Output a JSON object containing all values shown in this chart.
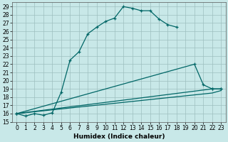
{
  "title": "",
  "xlabel": "Humidex (Indice chaleur)",
  "bg_color": "#c8e8e8",
  "line_color": "#006666",
  "grid_color": "#9dbfbf",
  "xlim": [
    -0.5,
    23.5
  ],
  "ylim": [
    15,
    29.5
  ],
  "xticks": [
    0,
    1,
    2,
    3,
    4,
    5,
    6,
    7,
    8,
    9,
    10,
    11,
    12,
    13,
    14,
    15,
    16,
    17,
    18,
    19,
    20,
    21,
    22,
    23
  ],
  "yticks": [
    15,
    16,
    17,
    18,
    19,
    20,
    21,
    22,
    23,
    24,
    25,
    26,
    27,
    28,
    29
  ],
  "curve1_x": [
    0,
    1,
    2,
    3,
    4,
    5,
    6,
    7,
    8,
    9,
    10,
    11,
    12,
    13,
    14,
    15,
    16,
    17,
    18
  ],
  "curve1_y": [
    16,
    15.7,
    16.0,
    15.8,
    16.1,
    18.6,
    22.5,
    23.5,
    25.7,
    26.5,
    27.2,
    27.6,
    29.0,
    28.8,
    28.5,
    28.5,
    27.5,
    26.8,
    26.5
  ],
  "curve2_x": [
    0,
    20,
    21,
    22,
    23
  ],
  "curve2_y": [
    16,
    22.0,
    19.5,
    19.0,
    19.0
  ],
  "curve3_x": [
    0,
    22,
    23
  ],
  "curve3_y": [
    16,
    19.0,
    19.0
  ],
  "curve4_x": [
    0,
    22,
    23
  ],
  "curve4_y": [
    16,
    18.5,
    18.8
  ],
  "tick_fontsize": 5.5,
  "xlabel_fontsize": 6.5
}
